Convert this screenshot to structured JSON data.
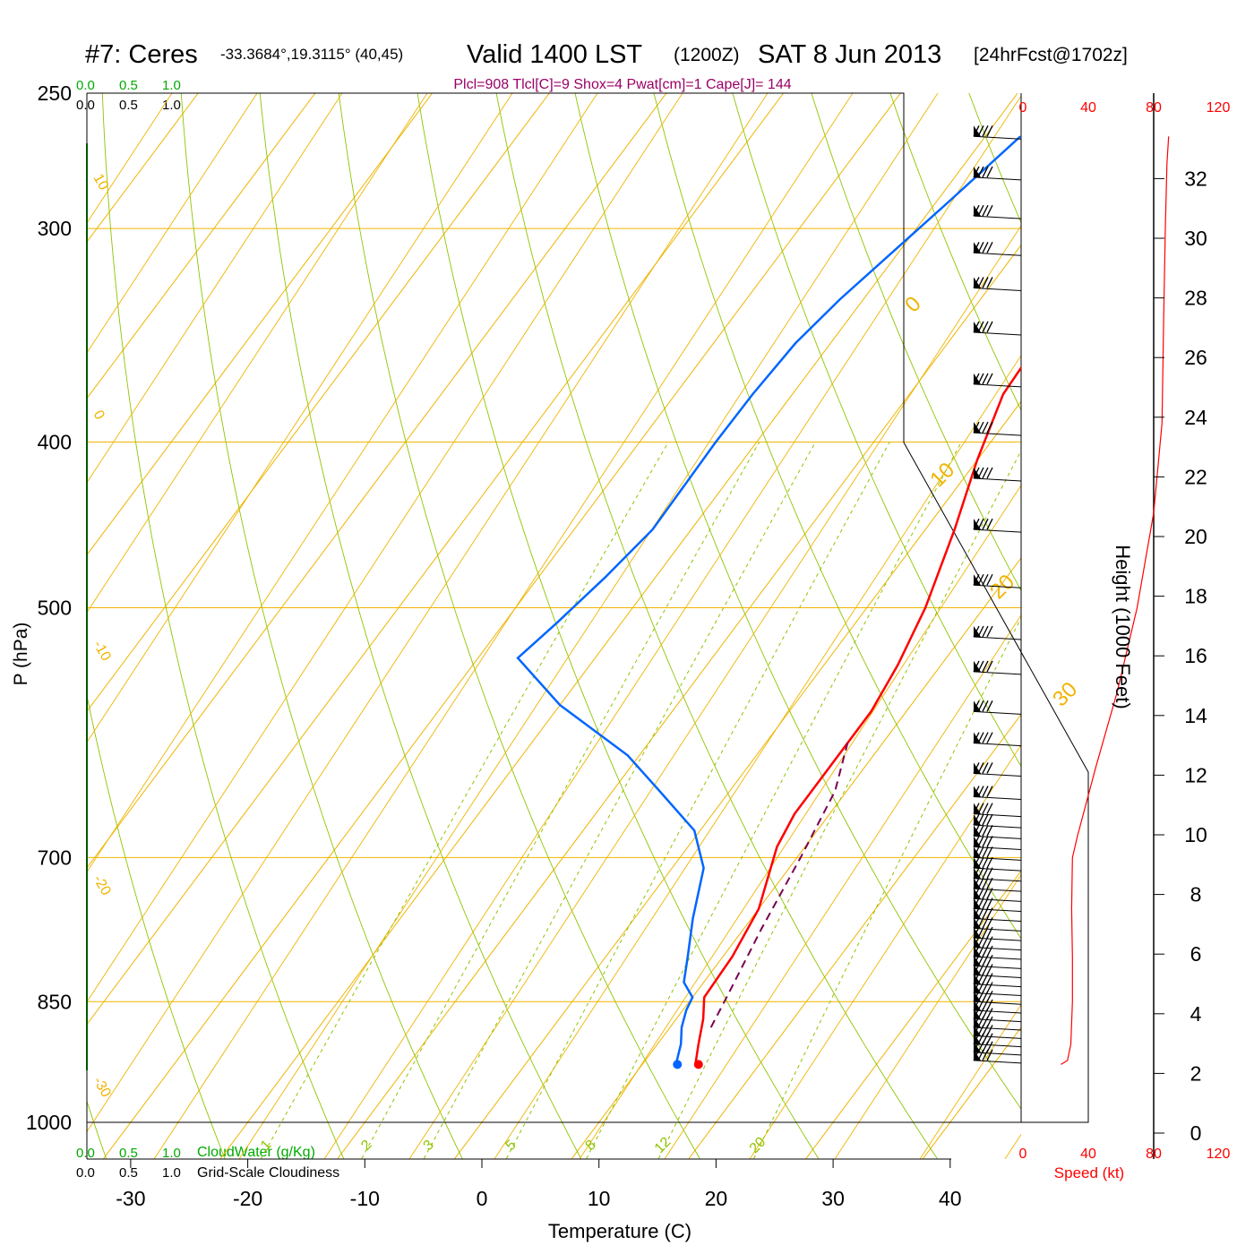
{
  "header": {
    "station": "#7: Ceres",
    "coords": "-33.3684°,19.3115° (40,45)",
    "valid": "Valid 1400 LST",
    "zulu": "(1200Z)",
    "date": "SAT 8 Jun 2013",
    "forecast": "[24hrFcst@1702z]",
    "indices": "Plcl=908 Tlcl[C]=9 Shox=4 Pwat[cm]=1 Cape[J]= 144"
  },
  "cloud_scale": {
    "ticks": [
      "0.0",
      "0.5",
      "1.0"
    ],
    "cloudwater_label": "CloudWater (g/Kg)",
    "cloudiness_label": "Grid-Scale Cloudiness"
  },
  "colors": {
    "temperature": "#ff0000",
    "dewpoint": "#0066ff",
    "isotherm": "#f0b400",
    "dry_adiabat": "#8fc400",
    "mixing_ratio": "#8fc400",
    "parcel": "#7a0050",
    "cloud": "#00aa00",
    "indices": "#990066",
    "wind_speed": "#ff0000"
  },
  "chart_data": {
    "type": "skew-t",
    "xlabel": "Temperature (C)",
    "ylabel": "P (hPa)",
    "x_ticks": [
      -30,
      -20,
      -10,
      0,
      10,
      20,
      30,
      40
    ],
    "y_ticks": [
      250,
      300,
      400,
      500,
      700,
      850,
      1000
    ],
    "xlim": [
      -33.5,
      36
    ],
    "ylim": [
      1050,
      250
    ],
    "isotherm_labels": [
      {
        "value": "10",
        "p": 280
      },
      {
        "value": "0",
        "p": 385
      },
      {
        "value": "-10",
        "p": 525
      },
      {
        "value": "-20",
        "p": 720
      },
      {
        "value": "-30",
        "p": 945
      }
    ],
    "upper_right_labels": [
      "0",
      "10",
      "20",
      "30"
    ],
    "mixing_ratio_labels": [
      "1",
      "2",
      "3",
      "5",
      "8",
      "12",
      "20"
    ],
    "mixing_ratio_values": [
      1,
      2,
      3,
      5,
      8,
      12,
      20
    ],
    "series": [
      {
        "name": "temperature",
        "points": [
          [
            -1.3,
            265
          ],
          [
            -2,
            300
          ],
          [
            -2.3,
            350
          ],
          [
            -2,
            375
          ],
          [
            0,
            410
          ],
          [
            2.5,
            450
          ],
          [
            5,
            500
          ],
          [
            6.3,
            540
          ],
          [
            7,
            575
          ],
          [
            7,
            620
          ],
          [
            7,
            660
          ],
          [
            7.6,
            690
          ],
          [
            10,
            750
          ],
          [
            10.8,
            800
          ],
          [
            11,
            845
          ],
          [
            12.3,
            870
          ],
          [
            13.5,
            900
          ],
          [
            14.5,
            924
          ],
          [
            14.8,
            925
          ]
        ]
      },
      {
        "name": "dewpoint",
        "points": [
          [
            -17,
            265
          ],
          [
            -19,
            290
          ],
          [
            -22,
            330
          ],
          [
            -23,
            350
          ],
          [
            -23.4,
            375
          ],
          [
            -23.5,
            400
          ],
          [
            -23.3,
            450
          ],
          [
            -24.3,
            480
          ],
          [
            -25.5,
            510
          ],
          [
            -26.6,
            535
          ],
          [
            -20,
            570
          ],
          [
            -11,
            610
          ],
          [
            -6,
            640
          ],
          [
            -0.5,
            675
          ],
          [
            2.7,
            710
          ],
          [
            5,
            760
          ],
          [
            7,
            800
          ],
          [
            8.3,
            828
          ],
          [
            10,
            845
          ],
          [
            10.3,
            860
          ],
          [
            11,
            880
          ],
          [
            12,
            900
          ],
          [
            12.7,
            920
          ],
          [
            13,
            925
          ]
        ]
      },
      {
        "name": "parcel",
        "points": [
          [
            13.5,
            880
          ],
          [
            13,
            850
          ],
          [
            11.5,
            770
          ],
          [
            10.3,
            700
          ],
          [
            9,
            640
          ],
          [
            7,
            600
          ]
        ]
      }
    ],
    "height_axis": {
      "label": "Height (1000 Feet)",
      "ticks": [
        0,
        2,
        4,
        6,
        8,
        10,
        12,
        14,
        16,
        18,
        20,
        22,
        24,
        26,
        28,
        30,
        32
      ]
    },
    "wind_speed_axis": {
      "label": "Speed (kt)",
      "ticks": [
        0,
        40,
        80,
        120
      ]
    },
    "wind_speed_profile": [
      [
        24,
        925
      ],
      [
        28,
        920
      ],
      [
        30,
        900
      ],
      [
        31,
        850
      ],
      [
        31,
        800
      ],
      [
        30.5,
        750
      ],
      [
        31,
        700
      ],
      [
        34,
        680
      ],
      [
        45,
        620
      ],
      [
        58,
        560
      ],
      [
        70,
        500
      ],
      [
        80,
        440
      ],
      [
        85,
        390
      ],
      [
        86,
        340
      ],
      [
        87,
        300
      ],
      [
        88,
        275
      ],
      [
        89,
        265
      ]
    ],
    "wind_barbs": [
      265,
      280,
      295,
      310,
      325,
      345,
      370,
      395,
      420,
      450,
      485,
      520,
      545,
      575,
      600,
      625,
      645,
      660,
      670,
      680,
      690,
      700,
      710,
      720,
      730,
      740,
      750,
      760,
      770,
      780,
      790,
      800,
      810,
      820,
      830,
      840,
      850,
      860,
      870,
      880,
      890,
      900,
      910,
      920
    ]
  }
}
